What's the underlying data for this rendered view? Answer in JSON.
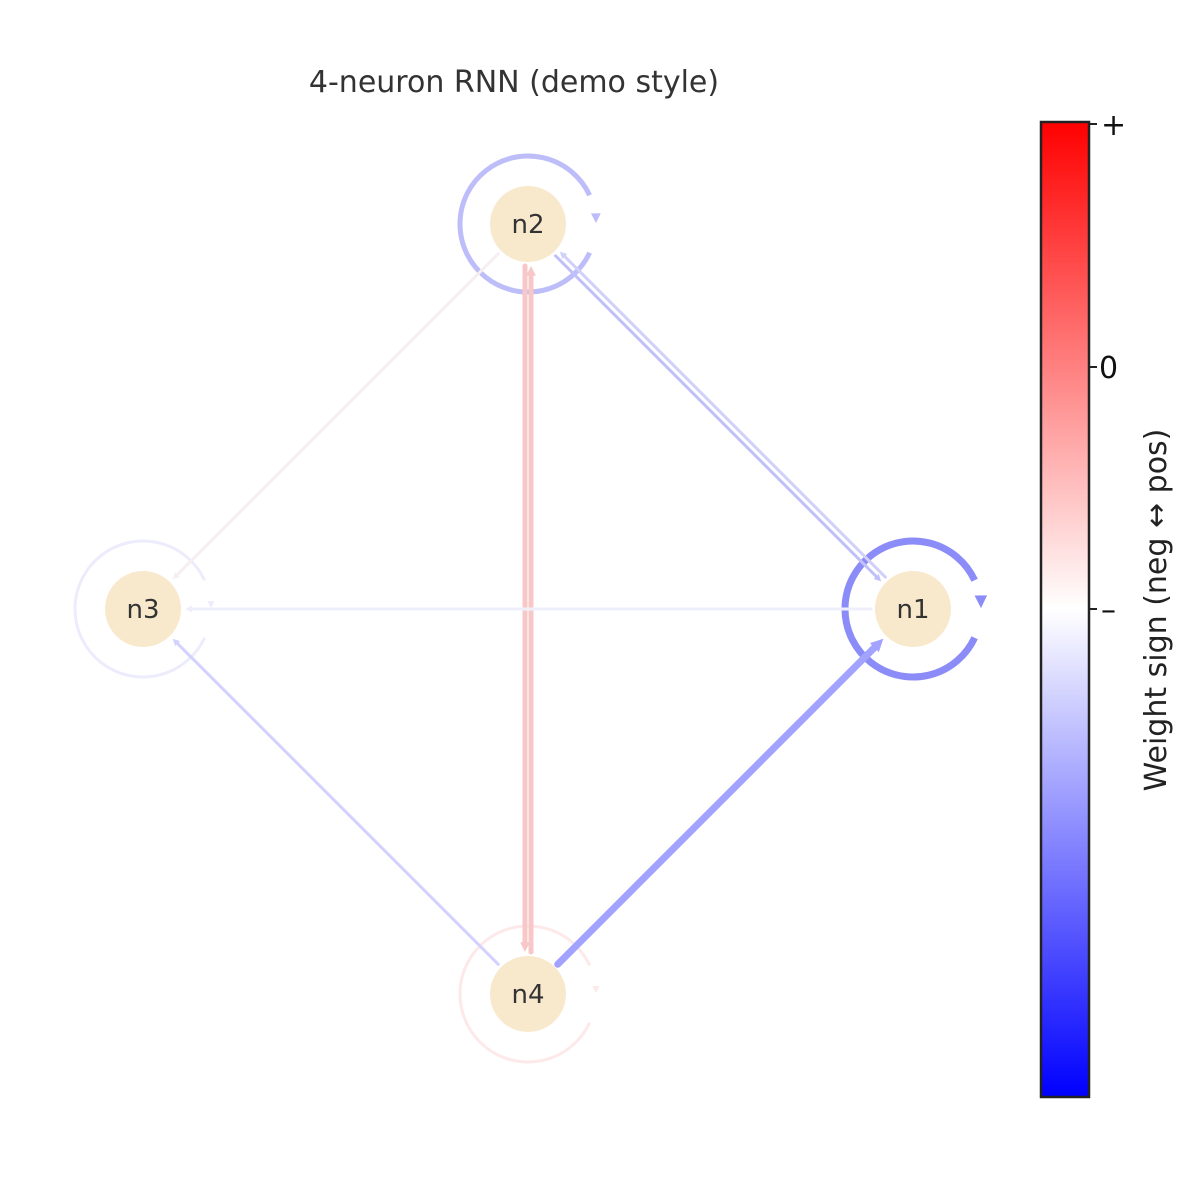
{
  "title": "4-neuron RNN (demo style)",
  "nodes": [
    {
      "id": "n1",
      "label": "n1"
    },
    {
      "id": "n2",
      "label": "n2"
    },
    {
      "id": "n3",
      "label": "n3"
    },
    {
      "id": "n4",
      "label": "n4"
    }
  ],
  "node_color": "#f8e9cc",
  "edges": [
    {
      "from": "n4",
      "to": "n1",
      "color": "#a2a2ff",
      "weight": "strong"
    },
    {
      "from": "n4",
      "to": "n2",
      "color": "#f8c8c8",
      "weight": "medium"
    },
    {
      "from": "n2",
      "to": "n4",
      "color": "#f8c8c8",
      "weight": "medium"
    },
    {
      "from": "n1",
      "to": "n2",
      "color": "#d0d0fb",
      "weight": "weak"
    },
    {
      "from": "n2",
      "to": "n1",
      "color": "#c0c0fa",
      "weight": "weak"
    },
    {
      "from": "n4",
      "to": "n3",
      "color": "#d2d2fd",
      "weight": "weak"
    },
    {
      "from": "n1",
      "to": "n3",
      "color": "#efeffc",
      "weight": "weak"
    },
    {
      "from": "n2",
      "to": "n3",
      "color": "#f6eef0",
      "weight": "weak"
    }
  ],
  "self_loops": [
    {
      "node": "n1",
      "color": "#8c8cf8",
      "weight": "strong"
    },
    {
      "node": "n2",
      "color": "#bdbdfa",
      "weight": "medium"
    },
    {
      "node": "n3",
      "color": "#ececfd",
      "weight": "weak"
    },
    {
      "node": "n4",
      "color": "#fde9e9",
      "weight": "weak"
    }
  ],
  "colorbar": {
    "label": "Weight sign (neg ↔ pos)",
    "ticks": [
      "+",
      "0",
      "–"
    ],
    "colors": {
      "top": "#ff0000",
      "middle": "#ffffff",
      "bottom": "#0000ff"
    }
  }
}
